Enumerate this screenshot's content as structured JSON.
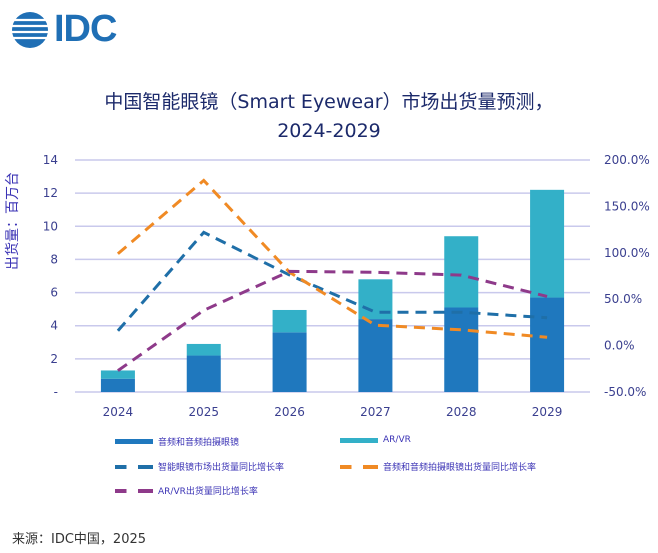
{
  "logo": {
    "text": "IDC"
  },
  "title_line1": "中国智能眼镜（Smart Eyewear）市场出货量预测，",
  "title_line2": "2024-2029",
  "source": "来源：IDC中国，2025",
  "chart_data": {
    "type": "bar+line",
    "title": "中国智能眼镜（Smart Eyewear）市场出货量预测，2024-2029",
    "ylabel": "出货量：百万台",
    "categories": [
      "2024",
      "2025",
      "2026",
      "2027",
      "2028",
      "2029"
    ],
    "ylim": [
      0,
      14
    ],
    "y_ticks": [
      "-",
      "2",
      "4",
      "6",
      "8",
      "10",
      "12",
      "14"
    ],
    "y2lim": [
      -50,
      200
    ],
    "y2_ticks": [
      "-50.0%",
      "0.0%",
      "50.0%",
      "100.0%",
      "150.0%",
      "200.0%"
    ],
    "grid": true,
    "legend_position": "bottom",
    "bar_series": [
      {
        "name": "音频和音频拍摄眼镜",
        "color": "#1f78be",
        "values": [
          0.8,
          2.2,
          3.6,
          4.4,
          5.1,
          5.7
        ]
      },
      {
        "name": "AR/VR",
        "color": "#33b0c8",
        "values": [
          0.5,
          0.7,
          1.35,
          2.4,
          4.3,
          6.5
        ]
      }
    ],
    "line_series": [
      {
        "name": "智能眼镜市场出货量同比增长率",
        "color": "#1f6fa8",
        "values": [
          16,
          122,
          76,
          36,
          36,
          30
        ]
      },
      {
        "name": "音频和音频拍摄眼镜出货量同比增长率",
        "color": "#f08a24",
        "values": [
          99,
          178,
          79,
          22,
          17,
          9
        ]
      },
      {
        "name": "AR/VR出货量同比增长率",
        "color": "#8e3a8a",
        "values": [
          -27,
          38,
          80,
          79,
          76,
          53
        ]
      }
    ]
  }
}
